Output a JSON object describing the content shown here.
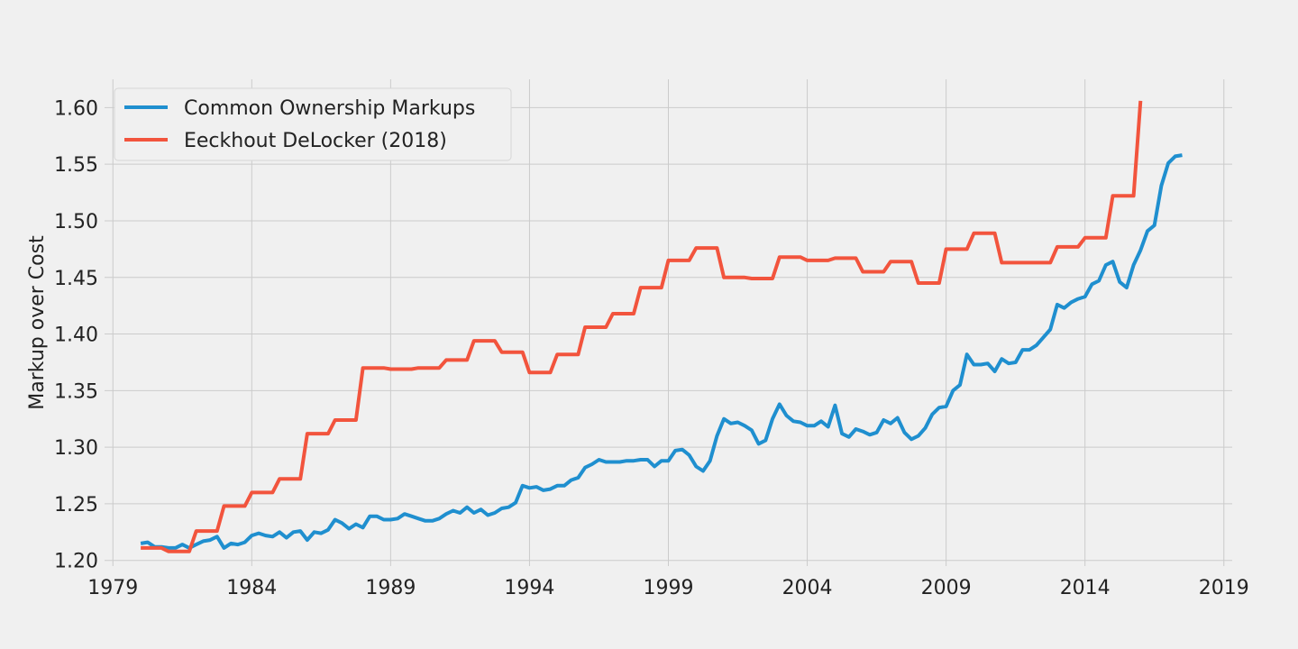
{
  "chart_data": {
    "type": "line",
    "title": "",
    "xlabel": "",
    "ylabel": "Markup over Cost",
    "xlim": [
      1978.7,
      2019.3
    ],
    "ylim": [
      1.195,
      1.625
    ],
    "xticks": [
      1979,
      1984,
      1989,
      1994,
      1999,
      2004,
      2009,
      2014,
      2019
    ],
    "yticks": [
      1.2,
      1.25,
      1.3,
      1.35,
      1.4,
      1.45,
      1.5,
      1.55,
      1.6
    ],
    "ytick_labels": [
      "1.20",
      "1.25",
      "1.30",
      "1.35",
      "1.40",
      "1.45",
      "1.50",
      "1.55",
      "1.60"
    ],
    "grid": true,
    "legend_position": "top-left",
    "series": [
      {
        "name": "Common Ownership Markups",
        "color": "#1f8fcf",
        "step": false,
        "x": [
          1980.0,
          1980.25,
          1980.5,
          1980.75,
          1981.0,
          1981.25,
          1981.5,
          1981.75,
          1982.0,
          1982.25,
          1982.5,
          1982.75,
          1983.0,
          1983.25,
          1983.5,
          1983.75,
          1984.0,
          1984.25,
          1984.5,
          1984.75,
          1985.0,
          1985.25,
          1985.5,
          1985.75,
          1986.0,
          1986.25,
          1986.5,
          1986.75,
          1987.0,
          1987.25,
          1987.5,
          1987.75,
          1988.0,
          1988.25,
          1988.5,
          1988.75,
          1989.0,
          1989.25,
          1989.5,
          1989.75,
          1990.0,
          1990.25,
          1990.5,
          1990.75,
          1991.0,
          1991.25,
          1991.5,
          1991.75,
          1992.0,
          1992.25,
          1992.5,
          1992.75,
          1993.0,
          1993.25,
          1993.5,
          1993.75,
          1994.0,
          1994.25,
          1994.5,
          1994.75,
          1995.0,
          1995.25,
          1995.5,
          1995.75,
          1996.0,
          1996.25,
          1996.5,
          1996.75,
          1997.0,
          1997.25,
          1997.5,
          1997.75,
          1998.0,
          1998.25,
          1998.5,
          1998.75,
          1999.0,
          1999.25,
          1999.5,
          1999.75,
          2000.0,
          2000.25,
          2000.5,
          2000.75,
          2001.0,
          2001.25,
          2001.5,
          2001.75,
          2002.0,
          2002.25,
          2002.5,
          2002.75,
          2003.0,
          2003.25,
          2003.5,
          2003.75,
          2004.0,
          2004.25,
          2004.5,
          2004.75,
          2005.0,
          2005.25,
          2005.5,
          2005.75,
          2006.0,
          2006.25,
          2006.5,
          2006.75,
          2007.0,
          2007.25,
          2007.5,
          2007.75,
          2008.0,
          2008.25,
          2008.5,
          2008.75,
          2009.0,
          2009.25,
          2009.5,
          2009.75,
          2010.0,
          2010.25,
          2010.5,
          2010.75,
          2011.0,
          2011.25,
          2011.5,
          2011.75,
          2012.0,
          2012.25,
          2012.5,
          2012.75,
          2013.0,
          2013.25,
          2013.5,
          2013.75,
          2014.0,
          2014.25,
          2014.5,
          2014.75,
          2015.0,
          2015.25,
          2015.5,
          2015.75,
          2016.0,
          2016.25,
          2016.5,
          2016.75,
          2017.0,
          2017.25,
          2017.5
        ],
        "y": [
          1.215,
          1.216,
          1.212,
          1.212,
          1.211,
          1.211,
          1.214,
          1.211,
          1.214,
          1.217,
          1.218,
          1.221,
          1.211,
          1.215,
          1.214,
          1.216,
          1.222,
          1.224,
          1.222,
          1.221,
          1.225,
          1.22,
          1.225,
          1.226,
          1.218,
          1.225,
          1.224,
          1.227,
          1.236,
          1.233,
          1.228,
          1.232,
          1.229,
          1.239,
          1.239,
          1.236,
          1.236,
          1.237,
          1.241,
          1.239,
          1.237,
          1.235,
          1.235,
          1.237,
          1.241,
          1.244,
          1.242,
          1.247,
          1.242,
          1.245,
          1.24,
          1.242,
          1.246,
          1.247,
          1.251,
          1.266,
          1.264,
          1.265,
          1.262,
          1.263,
          1.266,
          1.266,
          1.271,
          1.273,
          1.282,
          1.285,
          1.289,
          1.287,
          1.287,
          1.287,
          1.288,
          1.288,
          1.289,
          1.289,
          1.283,
          1.288,
          1.288,
          1.297,
          1.298,
          1.293,
          1.283,
          1.279,
          1.288,
          1.31,
          1.325,
          1.321,
          1.322,
          1.319,
          1.315,
          1.303,
          1.306,
          1.325,
          1.338,
          1.328,
          1.323,
          1.322,
          1.319,
          1.319,
          1.323,
          1.318,
          1.337,
          1.312,
          1.309,
          1.316,
          1.314,
          1.311,
          1.313,
          1.324,
          1.321,
          1.326,
          1.313,
          1.307,
          1.31,
          1.317,
          1.329,
          1.335,
          1.336,
          1.35,
          1.355,
          1.382,
          1.373,
          1.373,
          1.374,
          1.367,
          1.378,
          1.374,
          1.375,
          1.386,
          1.386,
          1.39,
          1.397,
          1.404,
          1.426,
          1.423,
          1.428,
          1.431,
          1.433,
          1.444,
          1.447,
          1.461,
          1.464,
          1.446,
          1.441,
          1.461,
          1.474,
          1.491,
          1.496,
          1.531,
          1.551,
          1.557,
          1.558
        ]
      },
      {
        "name": "Eeckhout DeLocker (2018)",
        "color": "#f2543d",
        "step": true,
        "x": [
          1980.0,
          1980.75,
          1981.0,
          1981.75,
          1982.0,
          1982.75,
          1983.0,
          1983.75,
          1984.0,
          1984.75,
          1985.0,
          1985.75,
          1986.0,
          1986.75,
          1987.0,
          1987.75,
          1988.0,
          1988.75,
          1989.0,
          1989.75,
          1990.0,
          1990.75,
          1991.0,
          1991.75,
          1992.0,
          1992.75,
          1993.0,
          1993.75,
          1994.0,
          1994.75,
          1995.0,
          1995.75,
          1996.0,
          1996.75,
          1997.0,
          1997.75,
          1998.0,
          1998.75,
          1999.0,
          1999.75,
          2000.0,
          2000.75,
          2001.0,
          2001.75,
          2002.0,
          2002.75,
          2003.0,
          2003.75,
          2004.0,
          2004.75,
          2005.0,
          2005.75,
          2006.0,
          2006.75,
          2007.0,
          2007.75,
          2008.0,
          2008.75,
          2009.0,
          2009.75,
          2010.0,
          2010.75,
          2011.0,
          2011.75,
          2012.0,
          2012.75,
          2013.0,
          2013.75,
          2014.0,
          2014.75,
          2015.0,
          2015.75,
          2016.0
        ],
        "y": [
          1.211,
          1.211,
          1.208,
          1.208,
          1.226,
          1.226,
          1.248,
          1.248,
          1.26,
          1.26,
          1.272,
          1.272,
          1.312,
          1.312,
          1.324,
          1.324,
          1.37,
          1.37,
          1.369,
          1.369,
          1.37,
          1.37,
          1.377,
          1.377,
          1.394,
          1.394,
          1.384,
          1.384,
          1.366,
          1.366,
          1.382,
          1.382,
          1.406,
          1.406,
          1.418,
          1.418,
          1.441,
          1.441,
          1.465,
          1.465,
          1.476,
          1.476,
          1.45,
          1.45,
          1.449,
          1.449,
          1.468,
          1.468,
          1.465,
          1.465,
          1.467,
          1.467,
          1.455,
          1.455,
          1.464,
          1.464,
          1.445,
          1.445,
          1.475,
          1.475,
          1.489,
          1.489,
          1.463,
          1.463,
          1.463,
          1.463,
          1.477,
          1.477,
          1.485,
          1.485,
          1.522,
          1.522,
          1.606
        ]
      }
    ]
  }
}
